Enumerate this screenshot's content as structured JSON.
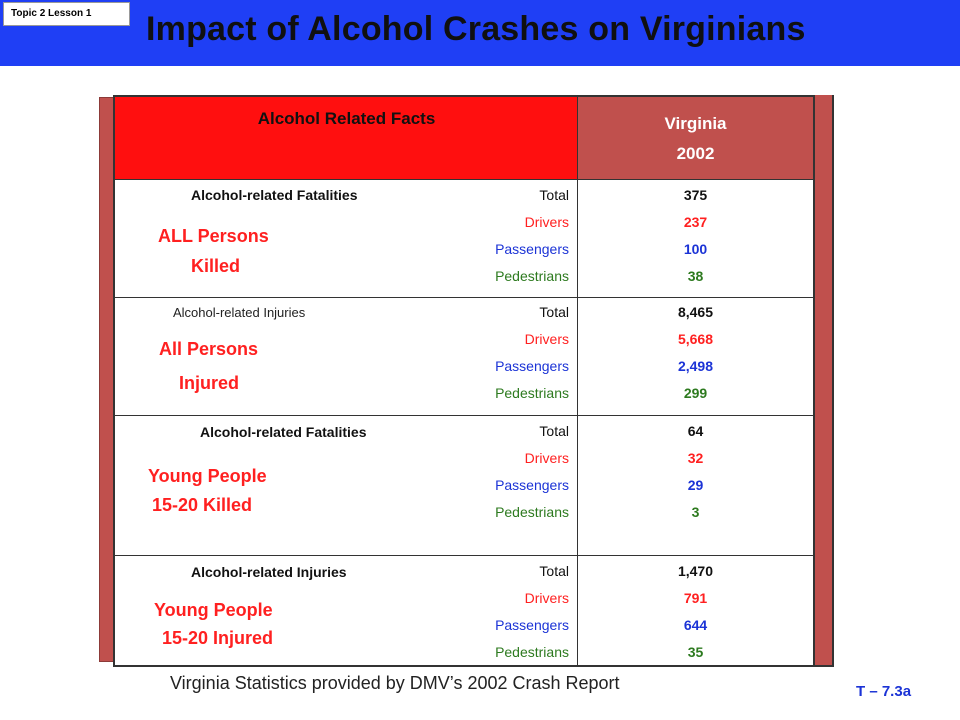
{
  "topic_tag": "Topic 2 Lesson 1",
  "title": "Impact of Alcohol Crashes on Virginians",
  "table": {
    "header_left": "Alcohol Related Facts",
    "header_right_line1": "Virginia",
    "header_right_line2": "2002",
    "sections": [
      {
        "heading": "Alcohol-related Fatalities",
        "label_line1": "ALL Persons",
        "label_line2": "Killed",
        "categories": [
          "Total",
          "Drivers",
          "Passengers",
          "Pedestrians"
        ],
        "values": [
          "375",
          "237",
          "100",
          "38"
        ]
      },
      {
        "heading": "Alcohol-related Injuries",
        "label_line1": "All Persons",
        "label_line2": "Injured",
        "categories": [
          "Total",
          "Drivers",
          "Passengers",
          "Pedestrians"
        ],
        "values": [
          "8,465",
          "5,668",
          "2,498",
          "299"
        ]
      },
      {
        "heading": "Alcohol-related Fatalities",
        "label_line1": "Young People",
        "label_line2": "15-20 Killed",
        "categories": [
          "Total",
          "Drivers",
          "Passengers",
          "Pedestrians"
        ],
        "values": [
          "64",
          "32",
          "29",
          "3"
        ]
      },
      {
        "heading": "Alcohol-related Injuries",
        "label_line1": "Young People",
        "label_line2": "15-20 Injured",
        "categories": [
          "Total",
          "Drivers",
          "Passengers",
          "Pedestrians"
        ],
        "values": [
          "1,470",
          "791",
          "644",
          "35"
        ]
      }
    ]
  },
  "footer_note": "Virginia Statistics provided by DMV’s 2002 Crash Report",
  "slide_code": "T – 7.3a",
  "colors": {
    "title_bar": "#1f3ff5",
    "header_left": "#ff0f0f",
    "header_right": "#c0504d",
    "drivers": "#ff2020",
    "passengers": "#1b33d6",
    "pedestrians": "#2d7a1f"
  }
}
